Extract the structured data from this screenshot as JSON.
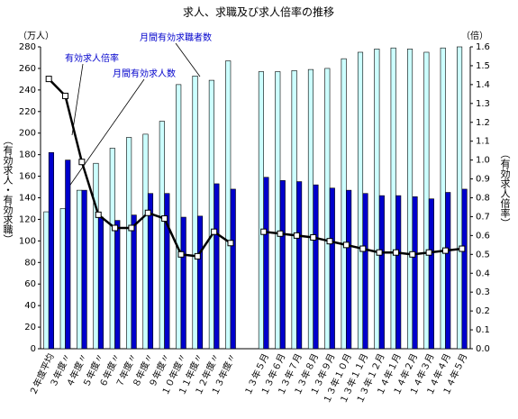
{
  "chart_data": {
    "type": "bar_line",
    "title": "求人、求職及び求人倍率の推移",
    "y_unit": "（万人）",
    "y2_unit": "（倍）",
    "ylabel": "（有効求人・有効求職）",
    "y2label": "（有効求人倍率）",
    "annotations": [
      "月間有効求職者数",
      "有効求人倍率",
      "月間有効求人数"
    ],
    "categories": [
      "２年度平均",
      "３年度〃",
      "４年度〃",
      "５年度〃",
      "６年度〃",
      "７年度〃",
      "８年度〃",
      "９年度〃",
      "１０年度〃",
      "１１年度〃",
      "１２年度〃",
      "１３年度〃",
      null,
      "１３年５月",
      "１３年６月",
      "１３年７月",
      "１３年８月",
      "１３年９月",
      "１３年１０月",
      "１３年１１月",
      "１３年１２月",
      "１４年１月",
      "１４年２月",
      "１４年３月",
      "１４年４月",
      "１４年５月"
    ],
    "series": [
      {
        "name": "月間有効求職者数",
        "color": "#ccffff",
        "values": [
          127,
          130,
          147,
          172,
          186,
          196,
          199,
          211,
          245,
          253,
          249,
          267,
          null,
          257,
          257,
          258,
          259,
          260,
          269,
          275,
          278,
          279,
          278,
          275,
          279,
          280
        ]
      },
      {
        "name": "月間有効求人数",
        "color": "#0000cc",
        "values": [
          182,
          175,
          147,
          122,
          119,
          124,
          144,
          144,
          122,
          123,
          153,
          148,
          null,
          159,
          156,
          155,
          152,
          149,
          147,
          144,
          142,
          142,
          141,
          139,
          145,
          148
        ]
      },
      {
        "name": "有効求人倍率",
        "color": "#000000",
        "axis": "y2",
        "values": [
          1.43,
          1.34,
          0.99,
          0.71,
          0.64,
          0.64,
          0.72,
          0.69,
          0.5,
          0.49,
          0.62,
          0.56,
          null,
          0.62,
          0.61,
          0.6,
          0.59,
          0.57,
          0.55,
          0.53,
          0.51,
          0.51,
          0.5,
          0.51,
          0.52,
          0.53
        ]
      }
    ],
    "ylim": [
      0,
      280
    ],
    "yticks": [
      0,
      20,
      40,
      60,
      80,
      100,
      120,
      140,
      160,
      180,
      200,
      220,
      240,
      260,
      280
    ],
    "y2lim": [
      0,
      1.6
    ],
    "y2ticks": [
      {
        "value": 0,
        "label": "0.0"
      },
      0.1,
      0.2,
      0.3,
      0.4,
      0.5,
      0.6,
      0.7,
      0.8,
      0.9,
      {
        "value": 1,
        "label": "1.0"
      },
      1.1,
      1.2,
      1.3,
      1.4,
      1.5,
      1.6
    ]
  }
}
